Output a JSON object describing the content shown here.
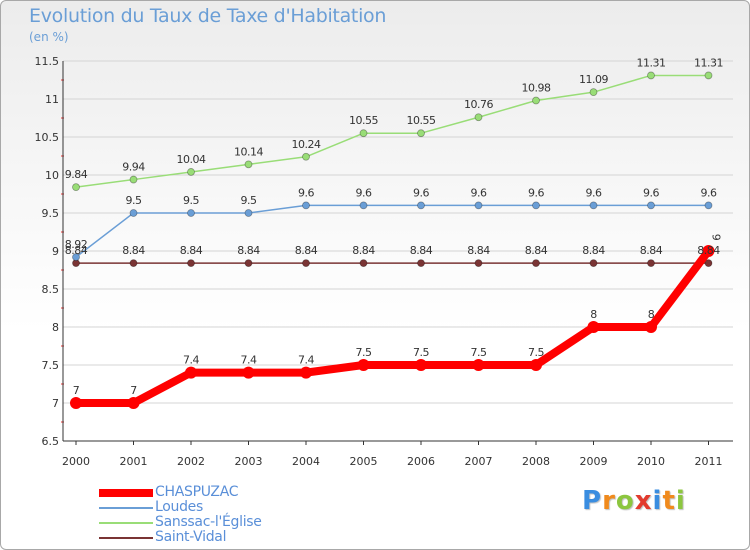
{
  "chart_data": {
    "type": "line",
    "title": "Evolution du Taux de Taxe d'Habitation",
    "subtitle": "(en %)",
    "x": [
      "2000",
      "2001",
      "2002",
      "2003",
      "2004",
      "2005",
      "2006",
      "2007",
      "2008",
      "2009",
      "2010",
      "2011"
    ],
    "ylim": [
      6.5,
      11.5
    ],
    "yticks": [
      "6.5",
      "7",
      "7.5",
      "8",
      "8.5",
      "9",
      "9.5",
      "10",
      "10.5",
      "11",
      "11.5"
    ],
    "series": [
      {
        "name": "CHASPUZAC",
        "color": "#ff0000",
        "values": [
          7,
          7,
          7.4,
          7.4,
          7.4,
          7.5,
          7.5,
          7.5,
          7.5,
          8,
          8,
          9
        ],
        "labels": [
          "7",
          "7",
          "7.4",
          "7.4",
          "7.4",
          "7.5",
          "7.5",
          "7.5",
          "7.5",
          "8",
          "8",
          "9"
        ]
      },
      {
        "name": "Loudes",
        "color": "#6a9ed6",
        "values": [
          8.92,
          9.5,
          9.5,
          9.5,
          9.6,
          9.6,
          9.6,
          9.6,
          9.6,
          9.6,
          9.6,
          9.6
        ],
        "labels": [
          "8.92",
          "9.5",
          "9.5",
          "9.5",
          "9.6",
          "9.6",
          "9.6",
          "9.6",
          "9.6",
          "9.6",
          "9.6",
          "9.6"
        ]
      },
      {
        "name": "Sanssac-l'Église",
        "color": "#99dd77",
        "values": [
          9.84,
          9.94,
          10.04,
          10.14,
          10.24,
          10.55,
          10.55,
          10.76,
          10.98,
          11.09,
          11.31,
          11.31
        ],
        "labels": [
          "9.84",
          "9.94",
          "10.04",
          "10.14",
          "10.24",
          "10.55",
          "10.55",
          "10.76",
          "10.98",
          "11.09",
          "11.31",
          "11.31"
        ]
      },
      {
        "name": "Saint-Vidal",
        "color": "#7a3434",
        "values": [
          8.84,
          8.84,
          8.84,
          8.84,
          8.84,
          8.84,
          8.84,
          8.84,
          8.84,
          8.84,
          8.84,
          8.84
        ],
        "labels": [
          "8.84",
          "8.84",
          "8.84",
          "8.84",
          "8.84",
          "8.84",
          "8.84",
          "8.84",
          "8.84",
          "8.84",
          "8.84",
          "8.84"
        ]
      }
    ]
  },
  "logo": {
    "letters": [
      "P",
      "r",
      "o",
      "x",
      "i",
      "t",
      "i"
    ],
    "colors": [
      "#3a8de0",
      "#f08a1c",
      "#8cc63f",
      "#e23b2e",
      "#3a8de0",
      "#f08a1c",
      "#8cc63f"
    ]
  }
}
